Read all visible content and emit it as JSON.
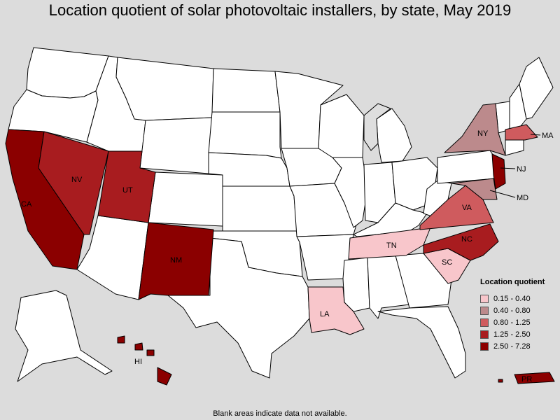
{
  "title": "Location quotient of solar photovoltaic installers, by state, May 2019",
  "footnote": "Blank areas indicate data not available.",
  "legend": {
    "title": "Location quotient",
    "bins": [
      {
        "label": "0.15 - 0.40",
        "color": "#f8c6cb"
      },
      {
        "label": "0.40 - 0.80",
        "color": "#bc8a8c"
      },
      {
        "label": "0.80 - 1.25",
        "color": "#cf5b5e"
      },
      {
        "label": "1.25 - 2.50",
        "color": "#a81c1f"
      },
      {
        "label": "2.50 - 7.28",
        "color": "#8b0000"
      }
    ]
  },
  "colors": {
    "no_data": "#ffffff",
    "michigan_upper_gray": "#dedede",
    "background": "#dcdcdc"
  },
  "state_labels": {
    "CA": "CA",
    "NV": "NV",
    "UT": "UT",
    "NM": "NM",
    "HI": "HI",
    "LA": "LA",
    "TN": "TN",
    "SC": "SC",
    "NC": "NC",
    "VA": "VA",
    "MD": "MD",
    "NJ": "NJ",
    "NY": "NY",
    "MA": "MA",
    "PR": "PR"
  },
  "state_categories": {
    "CA": "2.50 - 7.28",
    "NM": "2.50 - 7.28",
    "NJ": "2.50 - 7.28",
    "HI": "2.50 - 7.28",
    "PR": "2.50 - 7.28",
    "NV": "1.25 - 2.50",
    "UT": "1.25 - 2.50",
    "NC": "1.25 - 2.50",
    "MA": "0.80 - 1.25",
    "VA": "0.80 - 1.25",
    "NY": "0.40 - 0.80",
    "MD": "0.40 - 0.80",
    "LA": "0.15 - 0.40",
    "TN": "0.15 - 0.40",
    "SC": "0.15 - 0.40"
  }
}
